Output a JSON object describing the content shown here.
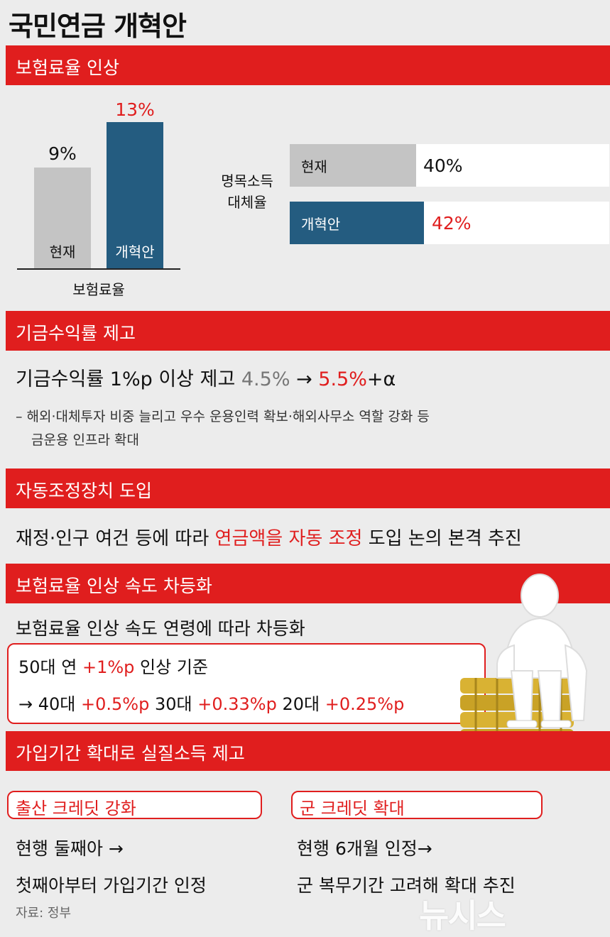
{
  "title": "국민연금 개혁안",
  "sections": {
    "s1": "보험료율 인상",
    "s2": "기금수익률 제고",
    "s3": "자동조정장치 도입",
    "s4": "보험료율 인상 속도 차등화",
    "s5": "가입기간 확대로 실질소득 제고"
  },
  "premium_chart": {
    "current_value": "9%",
    "reform_value": "13%",
    "current_label": "현재",
    "reform_label": "개혁안",
    "axis_label": "보험료율"
  },
  "replacement": {
    "label_line1": "명목소득",
    "label_line2": "대체율",
    "current_label": "현재",
    "current_value": "40%",
    "reform_label": "개혁안",
    "reform_value": "42%"
  },
  "fund": {
    "lead": "기금수익률 1%p 이상 제고",
    "from": "4.5%",
    "arrow": "→",
    "to": "5.5%",
    "plus": "+α",
    "detail_line1": "– 해외·대체투자 비중 늘리고 우수 운용인력 확보·해외사무소 역할 강화 등",
    "detail_line2": "금운용 인프라 확대"
  },
  "auto": {
    "pre": "재정·인구 여건 등에 따라",
    "highlight": "연금액을 자동 조정",
    "post": "도입 논의 본격 추진"
  },
  "speed": {
    "lead": "보험료율 인상 속도 연령에 따라 차등화",
    "l1_a": "50대 연",
    "l1_b": "+1%p",
    "l1_c": "인상 기준",
    "l2_arrow": "→ 40대",
    "l2_40": "+0.5%p",
    "l2_30label": "30대",
    "l2_30": "+0.33%p",
    "l2_20label": "20대",
    "l2_20": "+0.25%p"
  },
  "credits": {
    "birth_title": "출산 크레딧 강화",
    "birth_line1": "현행 둘째아 →",
    "birth_line2": "첫째아부터 가입기간  인정",
    "military_title": "군 크레딧 확대",
    "military_line1": "현행 6개월 인정→",
    "military_line2": "군 복무기간 고려해 확대 추진"
  },
  "source": "자료: 정부",
  "watermark": "뉴시스",
  "colors": {
    "accent_red": "#e01e1e",
    "bar_gray": "#c4c4c4",
    "bar_blue": "#245c80",
    "coin_gold": "#d9b233"
  }
}
